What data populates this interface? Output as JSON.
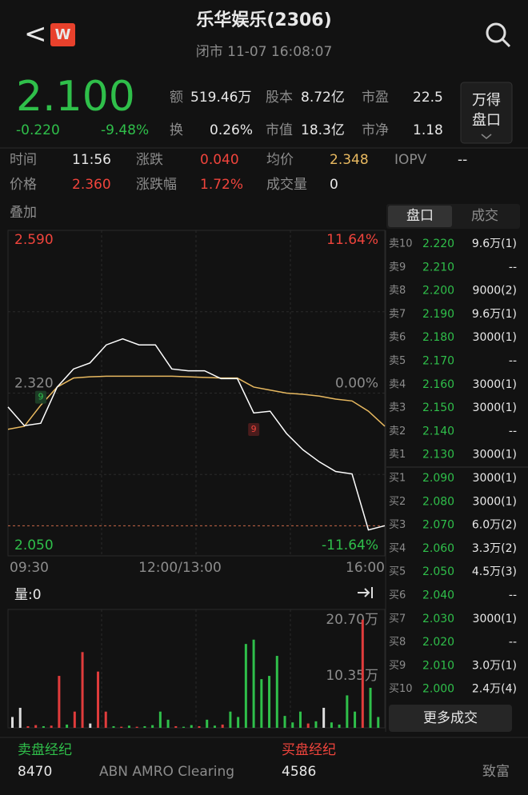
{
  "header": {
    "back": "<",
    "logo": "W",
    "title": "乐华娱乐(2306)",
    "status": "闭市 11-07 16:08:07"
  },
  "quote": {
    "price": "2.100",
    "change": "-0.220",
    "change_pct": "-9.48%",
    "stats": [
      {
        "label": "额",
        "value": "519.46万"
      },
      {
        "label": "股本",
        "value": "8.72亿"
      },
      {
        "label": "市盈",
        "value": "22.5"
      },
      {
        "label": "换",
        "value": "0.26%"
      },
      {
        "label": "市值",
        "value": "18.3亿"
      },
      {
        "label": "市净",
        "value": "1.18"
      }
    ],
    "button": [
      "万得",
      "盘口"
    ]
  },
  "crosshair": [
    [
      {
        "label": "时间",
        "value": "11:56"
      },
      {
        "label": "涨跌",
        "value": "0.040"
      },
      {
        "label": "均价",
        "value": "2.348"
      },
      {
        "label": "IOPV",
        "value": "--"
      }
    ],
    [
      {
        "label": "价格",
        "value": "2.360"
      },
      {
        "label": "涨跌幅",
        "value": "1.72%"
      },
      {
        "label": "成交量",
        "value": "0"
      }
    ]
  ],
  "overlay_label": "叠加",
  "chart_data": [
    {
      "type": "line",
      "x_labels": [
        "09:30",
        "12:00/13:00",
        "16:00"
      ],
      "ylim": [
        2.05,
        2.59
      ],
      "yticks": [
        {
          "value": 2.59,
          "label": "2.590"
        },
        {
          "value": 2.32,
          "label": "2.320"
        },
        {
          "value": 2.05,
          "label": "2.050"
        }
      ],
      "y2lim": [
        -11.64,
        11.64
      ],
      "y2ticks": [
        {
          "value": 11.64,
          "label": "11.64%"
        },
        {
          "value": 0,
          "label": "0.00%"
        },
        {
          "value": -11.64,
          "label": "-11.64%"
        }
      ],
      "last_price": 2.1,
      "markers": [
        {
          "label": "9",
          "index": 2
        },
        {
          "label": "9",
          "index": 15
        }
      ],
      "series": [
        {
          "name": "价格",
          "color": "#ffffff",
          "values": [
            2.297,
            2.266,
            2.27,
            2.33,
            2.36,
            2.37,
            2.4,
            2.41,
            2.4,
            2.4,
            2.36,
            2.357,
            2.357,
            2.344,
            2.344,
            2.287,
            2.29,
            2.253,
            2.226,
            2.206,
            2.19,
            2.186,
            2.093,
            2.1
          ]
        },
        {
          "name": "均价",
          "color": "#e8b960",
          "values": [
            2.26,
            2.265,
            2.3,
            2.33,
            2.345,
            2.347,
            2.348,
            2.348,
            2.348,
            2.348,
            2.348,
            2.347,
            2.346,
            2.345,
            2.345,
            2.33,
            2.325,
            2.32,
            2.318,
            2.315,
            2.31,
            2.307,
            2.29,
            2.265
          ]
        }
      ]
    },
    {
      "type": "bar",
      "title": "量:0",
      "ylim": [
        0,
        207000
      ],
      "yticks": [
        {
          "value": 207000,
          "label": "20.70万"
        },
        {
          "value": 103500,
          "label": "10.35万"
        }
      ],
      "values": [
        20000,
        37000,
        3000,
        5000,
        3000,
        4000,
        96000,
        6000,
        30000,
        140000,
        8000,
        104000,
        30000,
        3000,
        2000,
        4000,
        2000,
        3000,
        5000,
        30000,
        15000,
        3000,
        2000,
        5000,
        3000,
        15000,
        4000,
        6000,
        30000,
        20000,
        155000,
        163000,
        90000,
        96000,
        133000,
        22000,
        10000,
        30000,
        8000,
        12000,
        37000,
        10000,
        6000,
        60000,
        30000,
        200000,
        74000,
        20000
      ],
      "colors": [
        "#dddddd",
        "#dddddd",
        "#e03c3c",
        "#e03c3c",
        "#2fbf4a",
        "#e03c3c",
        "#e03c3c",
        "#2fbf4a",
        "#e03c3c",
        "#e03c3c",
        "#dddddd",
        "#e03c3c",
        "#e03c3c",
        "#2fbf4a",
        "#e03c3c",
        "#2fbf4a",
        "#e03c3c",
        "#2fbf4a",
        "#2fbf4a",
        "#2fbf4a",
        "#2fbf4a",
        "#e03c3c",
        "#2fbf4a",
        "#2fbf4a",
        "#e03c3c",
        "#2fbf4a",
        "#2fbf4a",
        "#e03c3c",
        "#2fbf4a",
        "#2fbf4a",
        "#2fbf4a",
        "#2fbf4a",
        "#2fbf4a",
        "#2fbf4a",
        "#2fbf4a",
        "#2fbf4a",
        "#2fbf4a",
        "#2fbf4a",
        "#e03c3c",
        "#2fbf4a",
        "#dddddd",
        "#2fbf4a",
        "#2fbf4a",
        "#2fbf4a",
        "#2fbf4a",
        "#e03c3c",
        "#2fbf4a",
        "#2fbf4a"
      ]
    }
  ],
  "order_book": {
    "tabs": [
      "盘口",
      "成交"
    ],
    "asks": [
      {
        "label": "卖10",
        "price": "2.220",
        "volume": "9.6万(1)"
      },
      {
        "label": "卖9",
        "price": "2.210",
        "volume": "--"
      },
      {
        "label": "卖8",
        "price": "2.200",
        "volume": "9000(2)"
      },
      {
        "label": "卖7",
        "price": "2.190",
        "volume": "9.6万(1)"
      },
      {
        "label": "卖6",
        "price": "2.180",
        "volume": "3000(1)"
      },
      {
        "label": "卖5",
        "price": "2.170",
        "volume": "--"
      },
      {
        "label": "卖4",
        "price": "2.160",
        "volume": "3000(1)"
      },
      {
        "label": "卖3",
        "price": "2.150",
        "volume": "3000(1)"
      },
      {
        "label": "卖2",
        "price": "2.140",
        "volume": "--"
      },
      {
        "label": "卖1",
        "price": "2.130",
        "volume": "3000(1)"
      }
    ],
    "bids": [
      {
        "label": "买1",
        "price": "2.090",
        "volume": "3000(1)"
      },
      {
        "label": "买2",
        "price": "2.080",
        "volume": "3000(1)"
      },
      {
        "label": "买3",
        "price": "2.070",
        "volume": "6.0万(2)"
      },
      {
        "label": "买4",
        "price": "2.060",
        "volume": "3.3万(2)"
      },
      {
        "label": "买5",
        "price": "2.050",
        "volume": "4.5万(3)"
      },
      {
        "label": "买6",
        "price": "2.040",
        "volume": "--"
      },
      {
        "label": "买7",
        "price": "2.030",
        "volume": "3000(1)"
      },
      {
        "label": "买8",
        "price": "2.020",
        "volume": "--"
      },
      {
        "label": "买9",
        "price": "2.010",
        "volume": "3.0万(1)"
      },
      {
        "label": "买10",
        "price": "2.000",
        "volume": "2.4万(4)"
      }
    ],
    "more_button": "更多成交"
  },
  "brokers": {
    "sell_title": "卖盘经纪",
    "buy_title": "买盘经纪",
    "sell": [
      {
        "id": "8470",
        "name": "ABN AMRO Clearing"
      }
    ],
    "buy": [
      {
        "id": "4586",
        "name": "致富"
      }
    ]
  }
}
